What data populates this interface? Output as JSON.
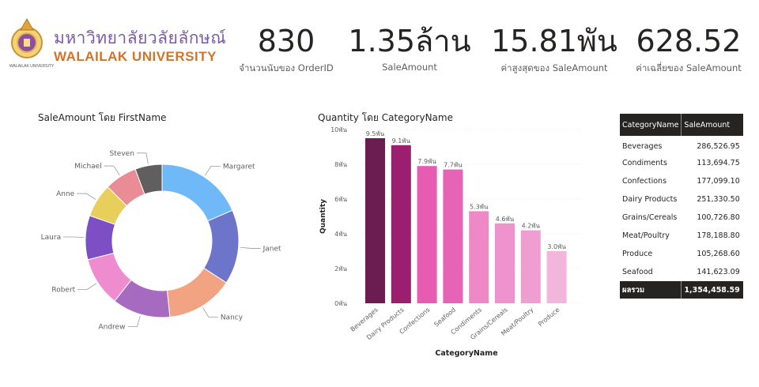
{
  "logo": {
    "thai_text": "มหาวิทยาลัยวลัยลักษณ์",
    "english_text": "WALAILAK UNIVERSITY",
    "seal_text": "WALAILAK UNIVERSITY"
  },
  "kpis": [
    {
      "value": "830",
      "label": "จำนวนนับของ OrderID"
    },
    {
      "value": "1.35ล้าน",
      "label": "SaleAmount"
    },
    {
      "value": "15.81พัน",
      "label": "ค่าสูงสุดของ SaleAmount"
    },
    {
      "value": "628.52",
      "label": "ค่าเฉลี่ยของ SaleAmount"
    }
  ],
  "colors": {
    "margaret": "#6fb9f8",
    "janet": "#6c75c9",
    "nancy": "#f2a382",
    "andrew": "#a66ac0",
    "robert": "#ee8ccf",
    "laura": "#7e4fc4",
    "anne": "#e8cf5c",
    "michael": "#e98c95",
    "steven": "#5f5f5f",
    "bars": [
      "#6b1d52",
      "#9c1e6f",
      "#e55cb0",
      "#e763b5",
      "#ee88c7",
      "#ee93cb",
      "#f09ed2",
      "#f2b5dc"
    ]
  },
  "chart_data": [
    {
      "type": "pie",
      "title": "SaleAmount โดย FirstName",
      "donut": true,
      "categories": [
        "Margaret",
        "Janet",
        "Nancy",
        "Andrew",
        "Robert",
        "Laura",
        "Anne",
        "Michael",
        "Steven"
      ],
      "values": [
        250000,
        213000,
        192000,
        166000,
        141000,
        126000,
        96000,
        93000,
        77000
      ]
    },
    {
      "type": "bar",
      "title": "Quantity โดย CategoryName",
      "xlabel": "CategoryName",
      "ylabel": "Quantity",
      "categories": [
        "Beverages",
        "Dairy Products",
        "Confections",
        "Seafood",
        "Condiments",
        "Grains/Cereals",
        "Meat/Poultry",
        "Produce"
      ],
      "values": [
        9500,
        9100,
        7900,
        7700,
        5300,
        4600,
        4200,
        3000
      ],
      "data_labels": [
        "9.5พัน",
        "9.1พัน",
        "7.9พัน",
        "7.7พัน",
        "5.3พัน",
        "4.6พัน",
        "4.2พัน",
        "3.0พัน"
      ],
      "yticks": [
        0,
        2000,
        4000,
        6000,
        8000,
        10000
      ],
      "ytick_labels": [
        "0พัน",
        "2พัน",
        "4พัน",
        "6พัน",
        "8พัน",
        "10พัน"
      ],
      "ylim": [
        0,
        10000
      ],
      "grid": true
    },
    {
      "type": "table",
      "columns": [
        "CategoryName",
        "SaleAmount"
      ],
      "rows": [
        [
          "Beverages",
          "286,526.95"
        ],
        [
          "Condiments",
          "113,694.75"
        ],
        [
          "Confections",
          "177,099.10"
        ],
        [
          "Dairy Products",
          "251,330.50"
        ],
        [
          "Grains/Cereals",
          "100,726.80"
        ],
        [
          "Meat/Poultry",
          "178,188.80"
        ],
        [
          "Produce",
          "105,268.60"
        ],
        [
          "Seafood",
          "141,623.09"
        ]
      ],
      "total_label": "ผลรวม",
      "total_value": "1,354,458.59"
    }
  ]
}
